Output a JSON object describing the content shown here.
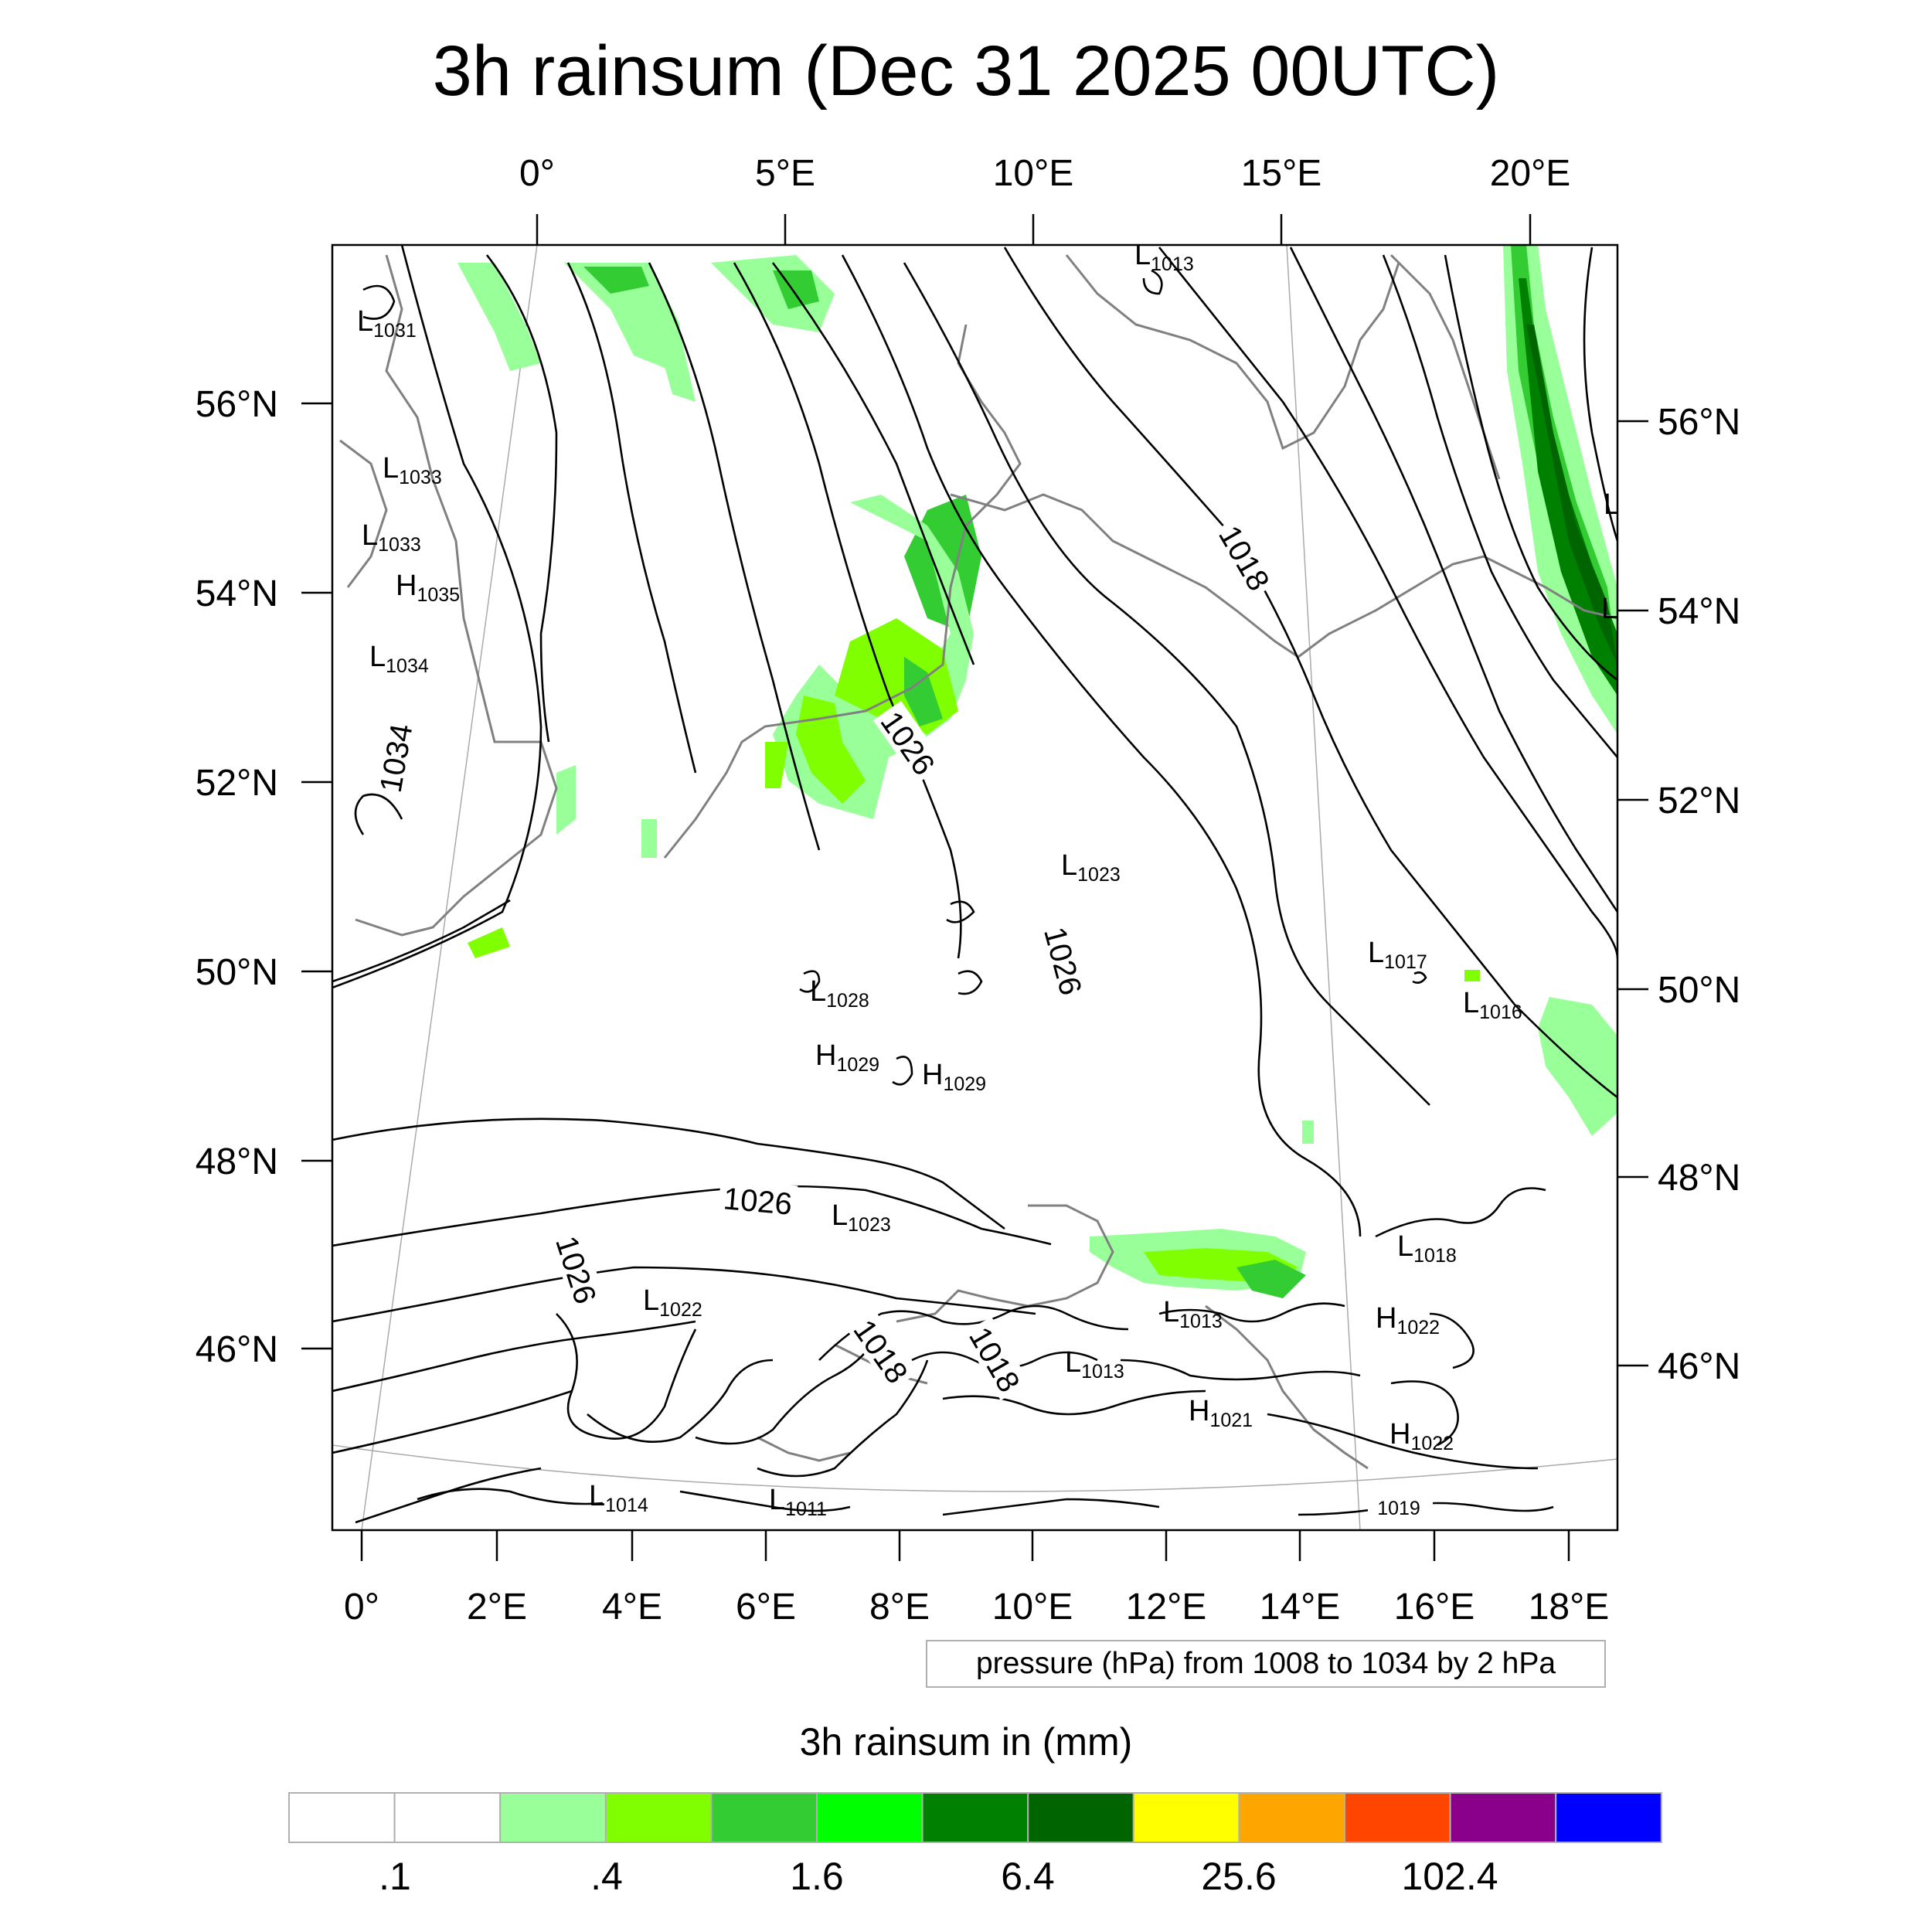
{
  "title": "3h rainsum (Dec 31 2025 00UTC)",
  "info_box": "pressure (hPa) from 1008 to 1034 by 2 hPa",
  "colorbar": {
    "title": "3h rainsum in (mm)",
    "colors": [
      "#ffffff",
      "#ffffff",
      "#99ff99",
      "#80ff00",
      "#33cc33",
      "#00ff00",
      "#008000",
      "#006400",
      "#ffff00",
      "#ffa500",
      "#ff4500",
      "#8b008b",
      "#0000ff"
    ],
    "labels": [
      ".1",
      ".4",
      "1.6",
      "6.4",
      "25.6",
      "102.4"
    ]
  },
  "axes": {
    "top_labels": [
      "0°",
      "5°E",
      "10°E",
      "15°E",
      "20°E"
    ],
    "bottom_labels": [
      "0°",
      "2°E",
      "4°E",
      "6°E",
      "8°E",
      "10°E",
      "12°E",
      "14°E",
      "16°E",
      "18°E"
    ],
    "left_labels": [
      "56°N",
      "54°N",
      "52°N",
      "50°N",
      "48°N",
      "46°N"
    ],
    "right_labels": [
      "56°N",
      "54°N",
      "52°N",
      "50°N",
      "48°N",
      "46°N"
    ]
  },
  "pressure_centers": [
    {
      "type": "L",
      "value": "1013"
    },
    {
      "type": "L",
      "value": "1031"
    },
    {
      "type": "L",
      "value": "1033"
    },
    {
      "type": "L",
      "value": "1033"
    },
    {
      "type": "H",
      "value": "1035"
    },
    {
      "type": "L",
      "value": "1034"
    },
    {
      "type": "L",
      "value": "1023"
    },
    {
      "type": "L",
      "value": "1017"
    },
    {
      "type": "L",
      "value": "1016"
    },
    {
      "type": "L",
      "value": "1028"
    },
    {
      "type": "H",
      "value": "1029"
    },
    {
      "type": "H",
      "value": "1029"
    },
    {
      "type": "L",
      "value": "1023"
    },
    {
      "type": "L",
      "value": "1022"
    },
    {
      "type": "L",
      "value": "1018"
    },
    {
      "type": "L",
      "value": "1013"
    },
    {
      "type": "H",
      "value": "1022"
    },
    {
      "type": "L",
      "value": "1013"
    },
    {
      "type": "H",
      "value": "1021"
    },
    {
      "type": "H",
      "value": "1022"
    },
    {
      "type": "L",
      "value": "1014"
    },
    {
      "type": "L",
      "value": "1011"
    },
    {
      "type": "L",
      "value": ""
    },
    {
      "type": "L",
      "value": ""
    }
  ],
  "isobar_labels": [
    "1034",
    "1026",
    "1018",
    "1026",
    "1026",
    "1026",
    "1018",
    "1018",
    "1019"
  ]
}
